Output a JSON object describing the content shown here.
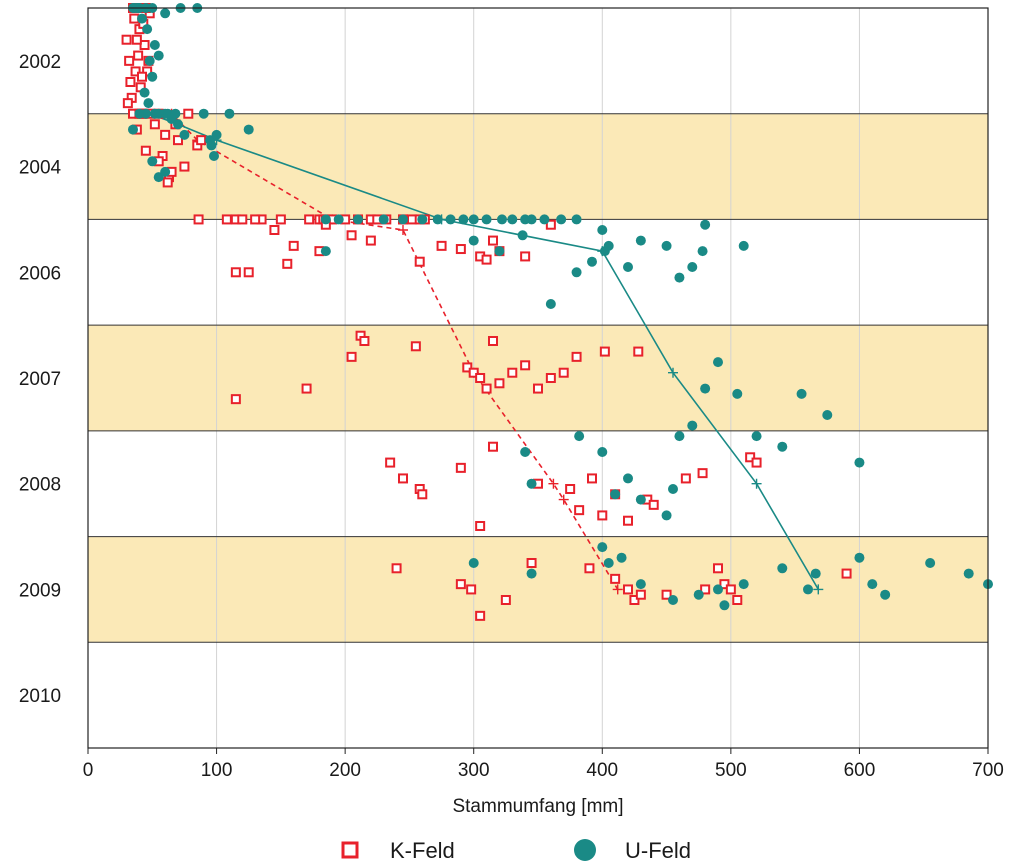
{
  "chart_data": {
    "type": "scatter",
    "xlabel": "Stammumfang [mm]",
    "ylabel": "",
    "xlim": [
      0,
      700
    ],
    "x_ticks": [
      0,
      100,
      200,
      300,
      400,
      500,
      600,
      700
    ],
    "y_categories": [
      "2002",
      "2004",
      "2006",
      "2007",
      "2008",
      "2009",
      "2010"
    ],
    "y_ticks": [
      "2002",
      "2004",
      "2006",
      "2007",
      "2008",
      "2009",
      "2010"
    ],
    "band_color": "#fbe9b7",
    "grid": true,
    "legend_position": "bottom",
    "series": [
      {
        "name": "K-Feld",
        "marker": "open-square",
        "color": "#e8212b",
        "points": [
          [
            30,
            2002.3
          ],
          [
            32,
            2002.5
          ],
          [
            35,
            2002.0
          ],
          [
            37,
            2002.6
          ],
          [
            38,
            2001.85
          ],
          [
            40,
            2002.2
          ],
          [
            42,
            2001.9
          ],
          [
            44,
            2002.35
          ],
          [
            46,
            2002.6
          ],
          [
            48,
            2002.05
          ],
          [
            33,
            2002.7
          ],
          [
            36,
            2002.1
          ],
          [
            39,
            2002.45
          ],
          [
            41,
            2002.75
          ],
          [
            43,
            2002.15
          ],
          [
            45,
            2001.75
          ],
          [
            47,
            2002.5
          ],
          [
            34,
            2002.85
          ],
          [
            31,
            2002.9
          ],
          [
            38,
            2002.3
          ],
          [
            42,
            2002.65
          ],
          [
            36,
            2001.95
          ],
          [
            35,
            2003.9
          ],
          [
            38,
            2004.15
          ],
          [
            40,
            2003.8
          ],
          [
            43,
            2003.95
          ],
          [
            45,
            2004.35
          ],
          [
            48,
            2003.7
          ],
          [
            52,
            2004.1
          ],
          [
            55,
            2003.95
          ],
          [
            58,
            2004.4
          ],
          [
            60,
            2004.2
          ],
          [
            63,
            2004.6
          ],
          [
            65,
            2004.55
          ],
          [
            68,
            2004.1
          ],
          [
            70,
            2004.25
          ],
          [
            75,
            2004.5
          ],
          [
            78,
            2003.95
          ],
          [
            85,
            2004.3
          ],
          [
            88,
            2004.25
          ],
          [
            62,
            2004.65
          ],
          [
            55,
            2004.45
          ],
          [
            42,
            2003.75
          ],
          [
            86,
            2005.18
          ],
          [
            108,
            2005.28
          ],
          [
            115,
            2005.15
          ],
          [
            120,
            2005.25
          ],
          [
            135,
            2005.5
          ],
          [
            150,
            2005.25
          ],
          [
            172,
            2005.3
          ],
          [
            180,
            2005.35
          ],
          [
            183,
            2005.4
          ],
          [
            185,
            2005.55
          ],
          [
            190,
            2005.65
          ],
          [
            200,
            2005.75
          ],
          [
            210,
            2005.9
          ],
          [
            220,
            2005.45
          ],
          [
            225,
            2005.6
          ],
          [
            232,
            2005.8
          ],
          [
            245,
            2005.35
          ],
          [
            252,
            2005.85
          ],
          [
            258,
            2005.65
          ],
          [
            262,
            2005.95
          ],
          [
            130,
            2005.95
          ],
          [
            115,
            2006.5
          ],
          [
            145,
            2006.1
          ],
          [
            155,
            2006.42
          ],
          [
            160,
            2006.25
          ],
          [
            180,
            2006.3
          ],
          [
            185,
            2006.05
          ],
          [
            205,
            2006.15
          ],
          [
            220,
            2006.2
          ],
          [
            245,
            2006.0
          ],
          [
            258,
            2006.4
          ],
          [
            275,
            2006.25
          ],
          [
            290,
            2006.28
          ],
          [
            305,
            2006.35
          ],
          [
            310,
            2006.38
          ],
          [
            315,
            2006.2
          ],
          [
            320,
            2006.3
          ],
          [
            340,
            2006.35
          ],
          [
            360,
            2006.05
          ],
          [
            125,
            2006.5
          ],
          [
            115,
            2007.7
          ],
          [
            170,
            2007.6
          ],
          [
            205,
            2007.3
          ],
          [
            212,
            2007.1
          ],
          [
            215,
            2007.15
          ],
          [
            255,
            2007.2
          ],
          [
            295,
            2007.4
          ],
          [
            300,
            2007.45
          ],
          [
            305,
            2007.5
          ],
          [
            310,
            2007.6
          ],
          [
            315,
            2007.15
          ],
          [
            320,
            2007.55
          ],
          [
            330,
            2007.45
          ],
          [
            340,
            2007.38
          ],
          [
            350,
            2007.6
          ],
          [
            360,
            2007.5
          ],
          [
            370,
            2007.45
          ],
          [
            380,
            2007.3
          ],
          [
            402,
            2007.25
          ],
          [
            428,
            2007.25
          ],
          [
            235,
            2008.3
          ],
          [
            245,
            2008.45
          ],
          [
            258,
            2008.55
          ],
          [
            260,
            2008.6
          ],
          [
            290,
            2008.35
          ],
          [
            305,
            2008.9
          ],
          [
            315,
            2008.15
          ],
          [
            350,
            2008.5
          ],
          [
            375,
            2008.55
          ],
          [
            382,
            2008.75
          ],
          [
            392,
            2008.45
          ],
          [
            400,
            2008.8
          ],
          [
            410,
            2008.6
          ],
          [
            420,
            2008.85
          ],
          [
            435,
            2008.65
          ],
          [
            440,
            2008.7
          ],
          [
            465,
            2008.45
          ],
          [
            478,
            2008.4
          ],
          [
            515,
            2008.25
          ],
          [
            520,
            2008.3
          ],
          [
            240,
            2009.3
          ],
          [
            290,
            2009.45
          ],
          [
            298,
            2009.5
          ],
          [
            305,
            2009.75
          ],
          [
            325,
            2009.6
          ],
          [
            345,
            2009.25
          ],
          [
            390,
            2009.3
          ],
          [
            410,
            2009.4
          ],
          [
            420,
            2009.5
          ],
          [
            425,
            2009.6
          ],
          [
            430,
            2009.55
          ],
          [
            450,
            2009.55
          ],
          [
            480,
            2009.5
          ],
          [
            490,
            2009.3
          ],
          [
            495,
            2009.45
          ],
          [
            500,
            2009.5
          ],
          [
            505,
            2009.6
          ],
          [
            590,
            2009.35
          ]
        ]
      },
      {
        "name": "U-Feld",
        "marker": "filled-circle",
        "color": "#1a8a86",
        "points": [
          [
            36,
            2001.6
          ],
          [
            40,
            2001.7
          ],
          [
            45,
            2001.55
          ],
          [
            50,
            2001.65
          ],
          [
            35,
            2001.75
          ],
          [
            38,
            2001.5
          ],
          [
            42,
            2002.1
          ],
          [
            46,
            2002.2
          ],
          [
            48,
            2002.5
          ],
          [
            50,
            2002.65
          ],
          [
            52,
            2002.35
          ],
          [
            55,
            2002.45
          ],
          [
            60,
            2002.05
          ],
          [
            72,
            2001.95
          ],
          [
            85,
            2001.9
          ],
          [
            44,
            2002.8
          ],
          [
            47,
            2002.9
          ],
          [
            39,
            2001.8
          ],
          [
            35,
            2004.15
          ],
          [
            40,
            2003.65
          ],
          [
            45,
            2003.75
          ],
          [
            52,
            2003.85
          ],
          [
            55,
            2004.0
          ],
          [
            60,
            2003.7
          ],
          [
            62,
            2003.95
          ],
          [
            65,
            2004.05
          ],
          [
            68,
            2003.9
          ],
          [
            70,
            2004.1
          ],
          [
            75,
            2004.2
          ],
          [
            90,
            2003.75
          ],
          [
            95,
            2004.25
          ],
          [
            96,
            2004.3
          ],
          [
            98,
            2004.4
          ],
          [
            100,
            2004.2
          ],
          [
            110,
            2003.95
          ],
          [
            125,
            2004.15
          ],
          [
            50,
            2004.45
          ],
          [
            55,
            2004.6
          ],
          [
            60,
            2004.55
          ],
          [
            185,
            2005.3
          ],
          [
            195,
            2005.45
          ],
          [
            210,
            2005.25
          ],
          [
            230,
            2005.15
          ],
          [
            245,
            2005.85
          ],
          [
            260,
            2005.65
          ],
          [
            272,
            2005.75
          ],
          [
            282,
            2005.15
          ],
          [
            292,
            2005.0
          ],
          [
            300,
            2005.25
          ],
          [
            310,
            2005.5
          ],
          [
            322,
            2005.1
          ],
          [
            330,
            2005.55
          ],
          [
            340,
            2005.75
          ],
          [
            355,
            2005.35
          ],
          [
            368,
            2005.35
          ],
          [
            380,
            2005.45
          ],
          [
            185,
            2006.3
          ],
          [
            300,
            2006.2
          ],
          [
            320,
            2006.3
          ],
          [
            338,
            2006.15
          ],
          [
            345,
            2006.0
          ],
          [
            360,
            2006.8
          ],
          [
            380,
            2006.5
          ],
          [
            392,
            2006.4
          ],
          [
            400,
            2006.1
          ],
          [
            402,
            2006.3
          ],
          [
            405,
            2006.25
          ],
          [
            420,
            2006.45
          ],
          [
            430,
            2006.2
          ],
          [
            450,
            2006.25
          ],
          [
            460,
            2006.55
          ],
          [
            470,
            2006.45
          ],
          [
            478,
            2006.3
          ],
          [
            480,
            2006.05
          ],
          [
            510,
            2006.25
          ],
          [
            340,
            2008.2
          ],
          [
            345,
            2008.5
          ],
          [
            382,
            2008.05
          ],
          [
            400,
            2008.2
          ],
          [
            410,
            2008.6
          ],
          [
            420,
            2008.45
          ],
          [
            430,
            2008.65
          ],
          [
            450,
            2008.8
          ],
          [
            455,
            2008.55
          ],
          [
            460,
            2008.05
          ],
          [
            470,
            2007.95
          ],
          [
            480,
            2007.6
          ],
          [
            490,
            2007.35
          ],
          [
            505,
            2007.65
          ],
          [
            520,
            2008.05
          ],
          [
            540,
            2008.15
          ],
          [
            555,
            2007.65
          ],
          [
            575,
            2007.85
          ],
          [
            600,
            2008.3
          ],
          [
            300,
            2009.25
          ],
          [
            345,
            2009.35
          ],
          [
            400,
            2009.1
          ],
          [
            405,
            2009.25
          ],
          [
            415,
            2009.2
          ],
          [
            430,
            2009.45
          ],
          [
            455,
            2009.6
          ],
          [
            475,
            2009.55
          ],
          [
            490,
            2009.5
          ],
          [
            495,
            2009.65
          ],
          [
            510,
            2009.45
          ],
          [
            540,
            2009.3
          ],
          [
            560,
            2009.5
          ],
          [
            566,
            2009.35
          ],
          [
            600,
            2009.2
          ],
          [
            610,
            2009.45
          ],
          [
            620,
            2009.55
          ],
          [
            655,
            2009.25
          ],
          [
            685,
            2009.35
          ],
          [
            700,
            2009.45
          ]
        ]
      }
    ],
    "median_lines": [
      {
        "series": "K-Feld",
        "style": "dashed",
        "color": "#e8212b",
        "points": [
          [
            48,
            2003.3
          ],
          [
            65,
            2004.0
          ],
          [
            85,
            2004.25
          ],
          [
            190,
            2005.35
          ],
          [
            245,
            2006.1
          ],
          [
            300,
            2007.45
          ],
          [
            362,
            2008.5
          ],
          [
            370,
            2008.65
          ],
          [
            412,
            2009.5
          ]
        ]
      },
      {
        "series": "U-Feld",
        "style": "solid",
        "color": "#1a8a86",
        "points": [
          [
            48,
            2003.3
          ],
          [
            70,
            2004.1
          ],
          [
            100,
            2004.25
          ],
          [
            275,
            2005.5
          ],
          [
            400,
            2006.3
          ],
          [
            455,
            2007.45
          ],
          [
            520,
            2008.5
          ],
          [
            568,
            2009.5
          ]
        ]
      }
    ]
  }
}
